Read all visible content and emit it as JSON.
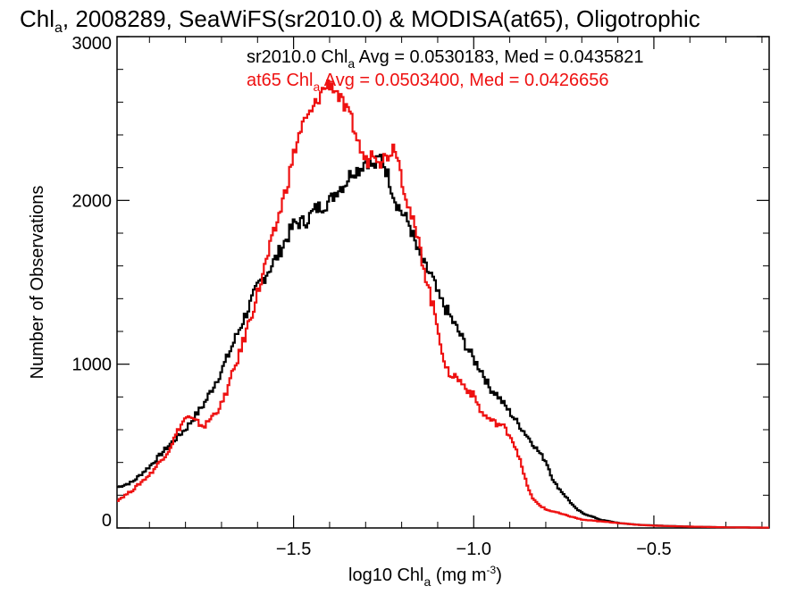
{
  "chart_data": {
    "type": "line",
    "title": "Chl",
    "title_sub": "a",
    "title_rest": ", 2008289, SeaWiFS(sr2010.0) & MODISA(at65), Oligotrophic",
    "xlabel": "log10 Chl",
    "xlabel_sub": "a",
    "xlabel_rest": " (mg m",
    "xlabel_sup": "-3",
    "xlabel_end": ")",
    "ylabel": "Number of Observations",
    "xlim": [
      -1.99,
      -0.18
    ],
    "ylim": [
      0,
      3000
    ],
    "x_ticks": [
      -1.5,
      -1.0,
      -0.5
    ],
    "x_tick_labels": [
      "−1.5",
      "−1.0",
      "−0.5"
    ],
    "y_ticks": [
      0,
      1000,
      2000,
      3000
    ],
    "y_tick_labels": [
      "0",
      "1000",
      "2000",
      "3000"
    ],
    "grid": false,
    "legend": [
      {
        "pre": "sr2010.0 Chl",
        "sub": "a",
        "post": " Avg = 0.0530183, Med = 0.0435821",
        "color": "#000000"
      },
      {
        "pre": "at65 Chl",
        "sub": "a",
        "post": " Avg = 0.0503400, Med = 0.0426656",
        "color": "#ee1111"
      }
    ],
    "series": [
      {
        "color": "#000000",
        "x": [
          -1.99,
          -1.95,
          -1.9,
          -1.85,
          -1.8,
          -1.75,
          -1.7,
          -1.65,
          -1.6,
          -1.55,
          -1.5,
          -1.47,
          -1.44,
          -1.42,
          -1.4,
          -1.38,
          -1.36,
          -1.34,
          -1.32,
          -1.3,
          -1.28,
          -1.26,
          -1.24,
          -1.22,
          -1.2,
          -1.18,
          -1.16,
          -1.14,
          -1.12,
          -1.1,
          -1.08,
          -1.05,
          -1.0,
          -0.98,
          -0.96,
          -0.94,
          -0.92,
          -0.9,
          -0.88,
          -0.86,
          -0.84,
          -0.8,
          -0.78,
          -0.75,
          -0.72,
          -0.7,
          -0.65,
          -0.6,
          -0.55,
          -0.5,
          -0.4,
          -0.3,
          -0.18
        ],
        "y": [
          250,
          280,
          380,
          500,
          610,
          760,
          970,
          1230,
          1480,
          1650,
          1860,
          1870,
          1950,
          1970,
          2000,
          2070,
          2100,
          2180,
          2190,
          2250,
          2200,
          2270,
          2150,
          2000,
          1920,
          1850,
          1700,
          1600,
          1540,
          1410,
          1340,
          1220,
          1020,
          960,
          860,
          820,
          760,
          700,
          640,
          580,
          520,
          400,
          280,
          200,
          120,
          90,
          50,
          30,
          20,
          15,
          8,
          4,
          2
        ]
      },
      {
        "color": "#ee1111",
        "x": [
          -1.99,
          -1.95,
          -1.9,
          -1.85,
          -1.82,
          -1.8,
          -1.75,
          -1.7,
          -1.65,
          -1.6,
          -1.55,
          -1.52,
          -1.5,
          -1.48,
          -1.45,
          -1.42,
          -1.4,
          -1.38,
          -1.36,
          -1.34,
          -1.32,
          -1.3,
          -1.28,
          -1.26,
          -1.24,
          -1.22,
          -1.2,
          -1.18,
          -1.15,
          -1.12,
          -1.1,
          -1.08,
          -1.05,
          -1.0,
          -0.98,
          -0.95,
          -0.92,
          -0.9,
          -0.88,
          -0.86,
          -0.84,
          -0.82,
          -0.8,
          -0.78,
          -0.75,
          -0.7,
          -0.65,
          -0.6,
          -0.55,
          -0.5,
          -0.4,
          -0.3,
          -0.18
        ],
        "y": [
          170,
          230,
          330,
          470,
          610,
          680,
          620,
          760,
          1080,
          1450,
          1850,
          2100,
          2300,
          2450,
          2550,
          2680,
          2720,
          2650,
          2560,
          2480,
          2330,
          2230,
          2310,
          2240,
          2280,
          2340,
          2120,
          1940,
          1690,
          1390,
          1210,
          960,
          920,
          800,
          700,
          650,
          620,
          560,
          460,
          300,
          180,
          140,
          110,
          100,
          80,
          50,
          40,
          30,
          20,
          14,
          8,
          4,
          2
        ]
      }
    ]
  }
}
